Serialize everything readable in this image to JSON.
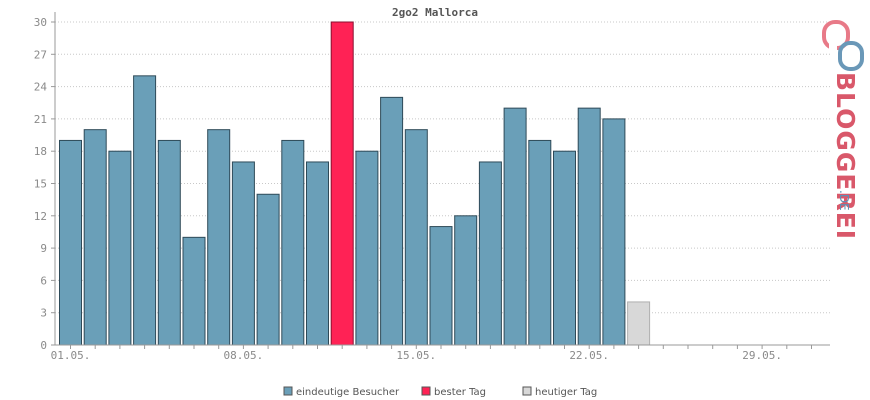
{
  "chart_data": {
    "type": "bar",
    "title": "2go2 Mallorca",
    "xlabel": "",
    "ylabel": "",
    "ylim": [
      0,
      30
    ],
    "y_ticks": [
      0,
      3,
      6,
      9,
      12,
      15,
      18,
      21,
      24,
      27,
      30
    ],
    "grid": true,
    "x_tick_labels": [
      {
        "label": "01.05.",
        "day": 1
      },
      {
        "label": "08.05.",
        "day": 8
      },
      {
        "label": "15.05.",
        "day": 15
      },
      {
        "label": "22.05.",
        "day": 22
      },
      {
        "label": "29.05.",
        "day": 29
      }
    ],
    "days_in_month": 31,
    "values": [
      19,
      20,
      18,
      25,
      19,
      10,
      20,
      17,
      14,
      19,
      17,
      30,
      18,
      23,
      20,
      11,
      12,
      17,
      22,
      19,
      18,
      22,
      21,
      4
    ],
    "series": [
      {
        "name": "eindeutige Besucher",
        "color": "#6a9fb8"
      },
      {
        "name": "bester Tag",
        "color": "#ff2255"
      },
      {
        "name": "heutiger Tag",
        "color": "#d8d8d8"
      }
    ],
    "best_day": 12,
    "today": 24,
    "legend_position": "bottom"
  },
  "brand": {
    "main": "BLOGGEREI",
    "sub": ".DE",
    "logo_icon": "link-icon"
  }
}
